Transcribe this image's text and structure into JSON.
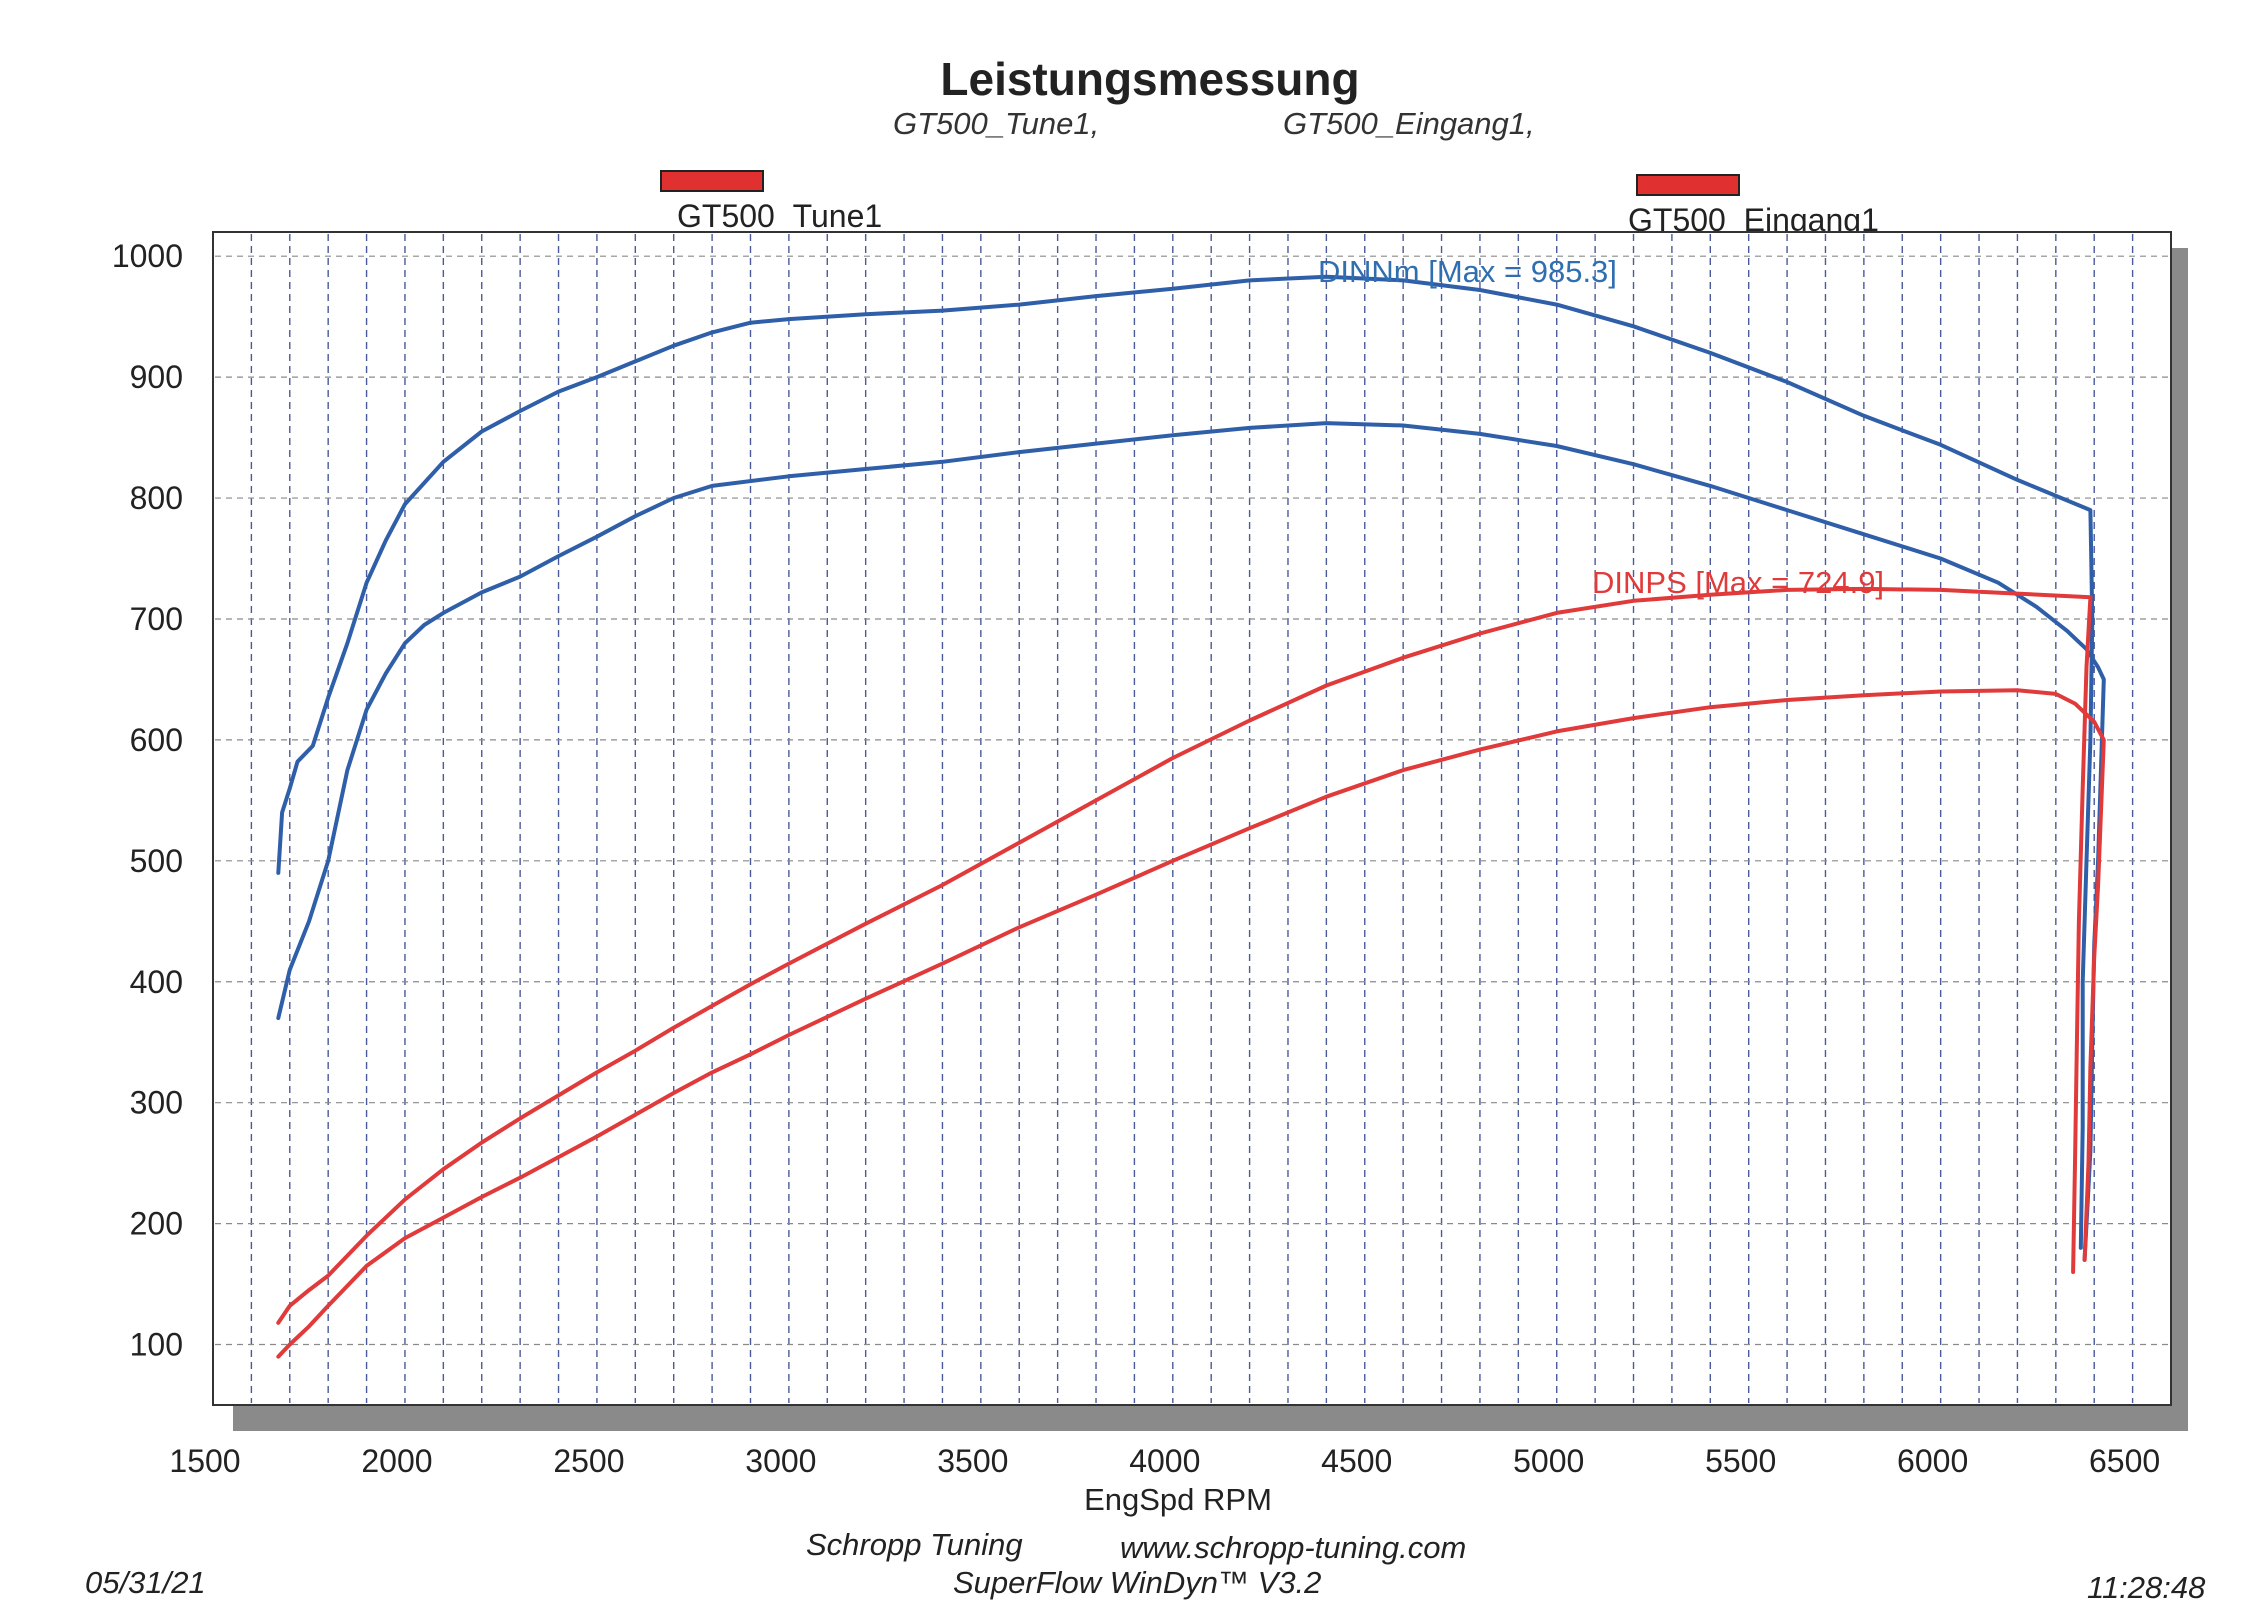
{
  "header": {
    "title": "Leistungsmessung",
    "subtitle_left": "GT500_Tune1,",
    "subtitle_right": "GT500_Eingang1,"
  },
  "legend": {
    "item1": "GT500_Tune1",
    "item2": "GT500_Eingang1"
  },
  "footer": {
    "date": "05/31/21",
    "company": "Schropp Tuning",
    "website": "www.schropp-tuning.com",
    "software": "SuperFlow WinDyn™ V3.2",
    "time": "11:28:48"
  },
  "colors": {
    "torque": "#2f5fa8",
    "power": "#e03a3a",
    "swatch": "#e03030"
  },
  "chart_data": {
    "type": "line",
    "title": "Leistungsmessung",
    "xlabel": "EngSpd RPM",
    "ylabel": "",
    "xlim": [
      1500,
      6600
    ],
    "ylim": [
      50,
      1020
    ],
    "xticks": [
      1500,
      2000,
      2500,
      3000,
      3500,
      4000,
      4500,
      5000,
      5500,
      6000,
      6500
    ],
    "yticks": [
      100,
      200,
      300,
      400,
      500,
      600,
      700,
      800,
      900,
      1000
    ],
    "grid": true,
    "annotations": {
      "torque": "DINNm  [Max = 985.3]",
      "power": "DINPS  [Max = 724.9]"
    },
    "series": [
      {
        "name": "GT500_Tune1",
        "quantity": "DINNm",
        "color": "#2f5fa8",
        "points": [
          [
            1670,
            490
          ],
          [
            1680,
            540
          ],
          [
            1700,
            560
          ],
          [
            1720,
            582
          ],
          [
            1760,
            595
          ],
          [
            1800,
            635
          ],
          [
            1850,
            680
          ],
          [
            1900,
            730
          ],
          [
            1950,
            765
          ],
          [
            2000,
            795
          ],
          [
            2100,
            830
          ],
          [
            2200,
            855
          ],
          [
            2300,
            872
          ],
          [
            2400,
            888
          ],
          [
            2500,
            900
          ],
          [
            2600,
            913
          ],
          [
            2700,
            926
          ],
          [
            2800,
            937
          ],
          [
            2900,
            945
          ],
          [
            3000,
            948
          ],
          [
            3200,
            952
          ],
          [
            3400,
            955
          ],
          [
            3600,
            960
          ],
          [
            3800,
            967
          ],
          [
            4000,
            973
          ],
          [
            4200,
            980
          ],
          [
            4400,
            983
          ],
          [
            4600,
            980
          ],
          [
            4800,
            972
          ],
          [
            5000,
            960
          ],
          [
            5200,
            942
          ],
          [
            5400,
            920
          ],
          [
            5600,
            896
          ],
          [
            5800,
            868
          ],
          [
            6000,
            844
          ],
          [
            6200,
            815
          ],
          [
            6390,
            790
          ],
          [
            6395,
            700
          ],
          [
            6390,
            600
          ],
          [
            6380,
            500
          ],
          [
            6370,
            400
          ],
          [
            6370,
            280
          ],
          [
            6365,
            180
          ]
        ]
      },
      {
        "name": "GT500_Eingang1",
        "quantity": "DINNm",
        "color": "#2f5fa8",
        "points": [
          [
            1670,
            370
          ],
          [
            1700,
            410
          ],
          [
            1750,
            450
          ],
          [
            1800,
            500
          ],
          [
            1850,
            575
          ],
          [
            1900,
            625
          ],
          [
            1950,
            655
          ],
          [
            2000,
            680
          ],
          [
            2050,
            695
          ],
          [
            2100,
            705
          ],
          [
            2200,
            722
          ],
          [
            2300,
            735
          ],
          [
            2400,
            752
          ],
          [
            2500,
            768
          ],
          [
            2600,
            785
          ],
          [
            2700,
            800
          ],
          [
            2800,
            810
          ],
          [
            3000,
            818
          ],
          [
            3200,
            824
          ],
          [
            3400,
            830
          ],
          [
            3600,
            838
          ],
          [
            3800,
            845
          ],
          [
            4000,
            852
          ],
          [
            4200,
            858
          ],
          [
            4400,
            862
          ],
          [
            4600,
            860
          ],
          [
            4800,
            853
          ],
          [
            5000,
            843
          ],
          [
            5200,
            828
          ],
          [
            5400,
            810
          ],
          [
            5600,
            790
          ],
          [
            5800,
            770
          ],
          [
            6000,
            750
          ],
          [
            6150,
            730
          ],
          [
            6250,
            710
          ],
          [
            6330,
            690
          ],
          [
            6380,
            675
          ],
          [
            6410,
            660
          ],
          [
            6425,
            650
          ],
          [
            6420,
            600
          ],
          [
            6410,
            500
          ],
          [
            6400,
            430
          ],
          [
            6395,
            350
          ],
          [
            6390,
            260
          ],
          [
            6375,
            170
          ]
        ]
      },
      {
        "name": "GT500_Tune1",
        "quantity": "DINPS",
        "color": "#e03a3a",
        "points": [
          [
            1670,
            118
          ],
          [
            1700,
            132
          ],
          [
            1750,
            145
          ],
          [
            1800,
            157
          ],
          [
            1900,
            190
          ],
          [
            2000,
            220
          ],
          [
            2100,
            245
          ],
          [
            2200,
            267
          ],
          [
            2300,
            287
          ],
          [
            2400,
            306
          ],
          [
            2500,
            325
          ],
          [
            2600,
            343
          ],
          [
            2700,
            362
          ],
          [
            2800,
            380
          ],
          [
            2900,
            398
          ],
          [
            3000,
            415
          ],
          [
            3200,
            448
          ],
          [
            3400,
            480
          ],
          [
            3600,
            515
          ],
          [
            3800,
            550
          ],
          [
            4000,
            585
          ],
          [
            4200,
            616
          ],
          [
            4400,
            645
          ],
          [
            4600,
            668
          ],
          [
            4800,
            688
          ],
          [
            5000,
            705
          ],
          [
            5200,
            715
          ],
          [
            5400,
            720
          ],
          [
            5600,
            724
          ],
          [
            5800,
            724.9
          ],
          [
            6000,
            724
          ],
          [
            6200,
            721
          ],
          [
            6390,
            718
          ],
          [
            6380,
            660
          ],
          [
            6370,
            560
          ],
          [
            6360,
            450
          ],
          [
            6355,
            350
          ],
          [
            6350,
            250
          ],
          [
            6345,
            160
          ]
        ]
      },
      {
        "name": "GT500_Eingang1",
        "quantity": "DINPS",
        "color": "#e03a3a",
        "points": [
          [
            1670,
            90
          ],
          [
            1700,
            100
          ],
          [
            1750,
            115
          ],
          [
            1800,
            132
          ],
          [
            1900,
            165
          ],
          [
            2000,
            188
          ],
          [
            2100,
            205
          ],
          [
            2200,
            222
          ],
          [
            2300,
            238
          ],
          [
            2400,
            255
          ],
          [
            2500,
            272
          ],
          [
            2600,
            290
          ],
          [
            2700,
            308
          ],
          [
            2800,
            325
          ],
          [
            2900,
            340
          ],
          [
            3000,
            356
          ],
          [
            3200,
            386
          ],
          [
            3400,
            415
          ],
          [
            3600,
            445
          ],
          [
            3800,
            472
          ],
          [
            4000,
            500
          ],
          [
            4200,
            527
          ],
          [
            4400,
            553
          ],
          [
            4600,
            575
          ],
          [
            4800,
            592
          ],
          [
            5000,
            607
          ],
          [
            5200,
            618
          ],
          [
            5400,
            627
          ],
          [
            5600,
            633
          ],
          [
            5800,
            637
          ],
          [
            6000,
            640
          ],
          [
            6200,
            641
          ],
          [
            6300,
            638
          ],
          [
            6350,
            630
          ],
          [
            6400,
            615
          ],
          [
            6425,
            600
          ],
          [
            6420,
            560
          ],
          [
            6410,
            480
          ],
          [
            6400,
            420
          ],
          [
            6390,
            330
          ],
          [
            6385,
            250
          ],
          [
            6375,
            170
          ]
        ]
      }
    ]
  }
}
